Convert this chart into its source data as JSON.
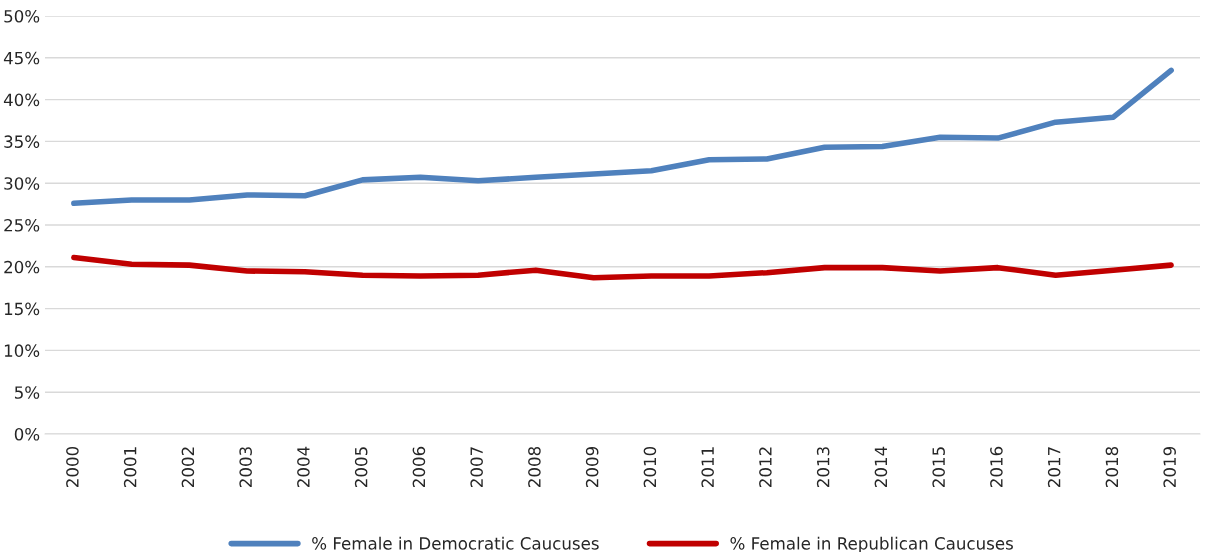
{
  "chart_data": {
    "type": "line",
    "categories": [
      "2000",
      "2001",
      "2002",
      "2003",
      "2004",
      "2005",
      "2006",
      "2007",
      "2008",
      "2009",
      "2010",
      "2011",
      "2012",
      "2013",
      "2014",
      "2015",
      "2016",
      "2017",
      "2018",
      "2019"
    ],
    "series": [
      {
        "name": "% Female in Democratic Caucuses",
        "color": "#4f81bd",
        "values": [
          27.6,
          28.0,
          28.0,
          28.6,
          28.5,
          30.4,
          30.7,
          30.3,
          30.7,
          31.1,
          31.5,
          32.8,
          32.9,
          34.3,
          34.4,
          35.5,
          35.4,
          37.3,
          37.9,
          43.5
        ]
      },
      {
        "name": "% Female in Republican Caucuses",
        "color": "#c00000",
        "values": [
          21.1,
          20.3,
          20.2,
          19.5,
          19.4,
          19.0,
          18.9,
          19.0,
          19.6,
          18.7,
          18.9,
          18.9,
          19.3,
          19.9,
          19.9,
          19.5,
          19.9,
          19.0,
          19.6,
          20.2
        ]
      }
    ],
    "ylim": [
      0,
      50
    ],
    "yticks": [
      {
        "value": 0,
        "label": "0%"
      },
      {
        "value": 5,
        "label": "5%"
      },
      {
        "value": 10,
        "label": "10%"
      },
      {
        "value": 15,
        "label": "15%"
      },
      {
        "value": 20,
        "label": "20%"
      },
      {
        "value": 25,
        "label": "25%"
      },
      {
        "value": 30,
        "label": "30%"
      },
      {
        "value": 35,
        "label": "35%"
      },
      {
        "value": 40,
        "label": "40%"
      },
      {
        "value": 45,
        "label": "45%"
      },
      {
        "value": 50,
        "label": "50%"
      }
    ],
    "grid": "y",
    "legend": "bottom",
    "marker": "none",
    "line_style": "solid"
  }
}
